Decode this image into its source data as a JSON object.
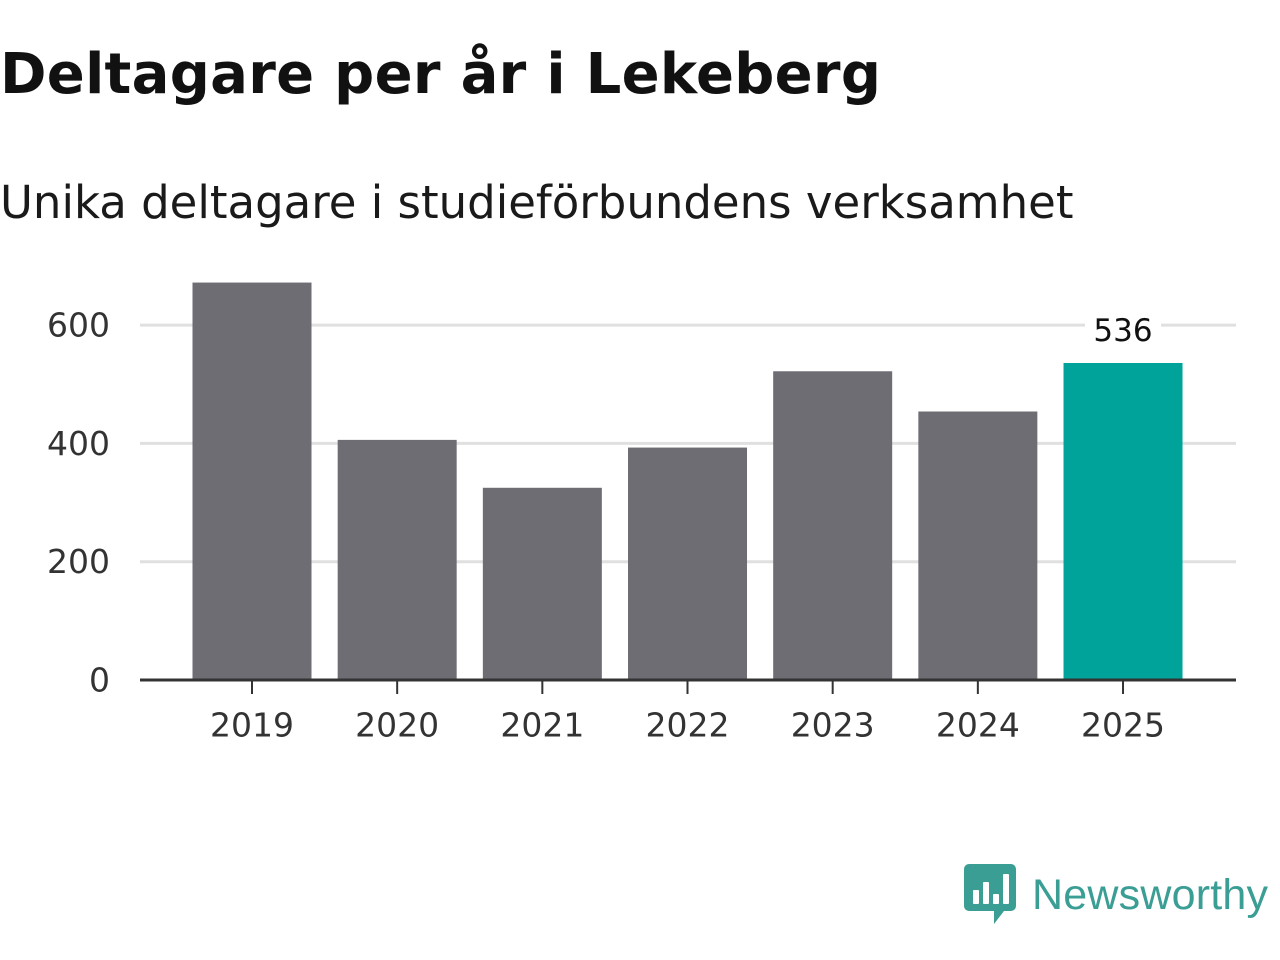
{
  "header": {
    "title": "Deltagare per år i Lekeberg",
    "subtitle": "Unika deltagare i studieförbundens verksamhet"
  },
  "brand": {
    "name": "Newsworthy",
    "color": "#3a9e95"
  },
  "colors": {
    "bar_default": "#6e6d74",
    "bar_highlight": "#00a39a",
    "gridline": "#e0e0e0",
    "axis": "#333333"
  },
  "chart_data": {
    "type": "bar",
    "title": "Deltagare per år i Lekeberg",
    "subtitle": "Unika deltagare i studieförbundens verksamhet",
    "xlabel": "",
    "ylabel": "",
    "categories": [
      "2019",
      "2020",
      "2021",
      "2022",
      "2023",
      "2024",
      "2025"
    ],
    "values": [
      672,
      406,
      325,
      393,
      522,
      454,
      536
    ],
    "highlight_index": 6,
    "highlight_label": "536",
    "ylim": [
      0,
      700
    ],
    "yticks": [
      0,
      200,
      400,
      600
    ],
    "ytick_labels": [
      "0",
      "200",
      "400",
      "600"
    ],
    "grid": true
  }
}
